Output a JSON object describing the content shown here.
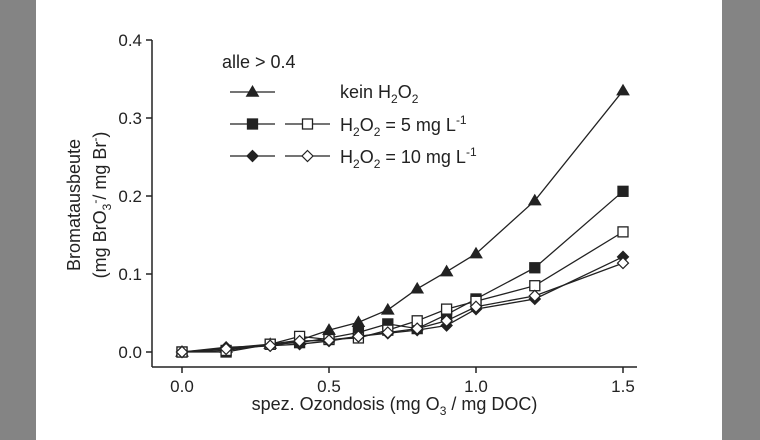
{
  "chart_data": {
    "type": "line",
    "xlabel": [
      "spez. Ozondosis (mg O",
      "3",
      " / mg DOC)"
    ],
    "ylabel": {
      "line1": "Bromatausbeute",
      "line2": [
        "(mg BrO",
        "3",
        "-",
        "/ mg Br",
        "-",
        ")"
      ]
    },
    "xlim": [
      0,
      1.5
    ],
    "ylim": [
      0,
      0.4
    ],
    "xticks": [
      "0.0",
      "0.5",
      "1.0",
      "1.5"
    ],
    "yticks": [
      "0.0",
      "0.1",
      "0.2",
      "0.3",
      "0.4"
    ],
    "grid": false,
    "legend_placement": "top-left",
    "legend": {
      "header": "alle  > 0.4",
      "row1": [
        "kein H",
        "2",
        "O",
        "2"
      ],
      "row2": [
        "H",
        "2",
        "O",
        "2",
        " = 5 mg L",
        "-1"
      ],
      "row3": [
        "H",
        "2",
        "O",
        "2",
        " = 10 mg L",
        "-1"
      ]
    },
    "x": [
      0,
      0.15,
      0.3,
      0.4,
      0.5,
      0.6,
      0.7,
      0.8,
      0.9,
      1.0,
      1.2,
      1.5
    ],
    "series": [
      {
        "marker": "triangle-filled",
        "values": [
          0,
          0.005,
          0.01,
          0.015,
          0.028,
          0.038,
          0.054,
          0.081,
          0.103,
          0.126,
          0.194,
          0.335
        ]
      },
      {
        "marker": "square-filled",
        "values": [
          0,
          0.0,
          0.01,
          0.012,
          0.018,
          0.025,
          0.036,
          0.03,
          0.048,
          0.068,
          0.108,
          0.206
        ]
      },
      {
        "marker": "square-open",
        "values": [
          0,
          0.002,
          0.01,
          0.02,
          0.016,
          0.018,
          0.028,
          0.04,
          0.055,
          0.065,
          0.085,
          0.154
        ]
      },
      {
        "marker": "diamond-filled",
        "values": [
          0,
          0.006,
          0.008,
          0.01,
          0.014,
          0.02,
          0.024,
          0.028,
          0.034,
          0.055,
          0.068,
          0.122
        ]
      },
      {
        "marker": "diamond-open",
        "values": [
          0,
          0.004,
          0.008,
          0.014,
          0.015,
          0.02,
          0.025,
          0.03,
          0.04,
          0.058,
          0.072,
          0.114
        ]
      }
    ]
  }
}
